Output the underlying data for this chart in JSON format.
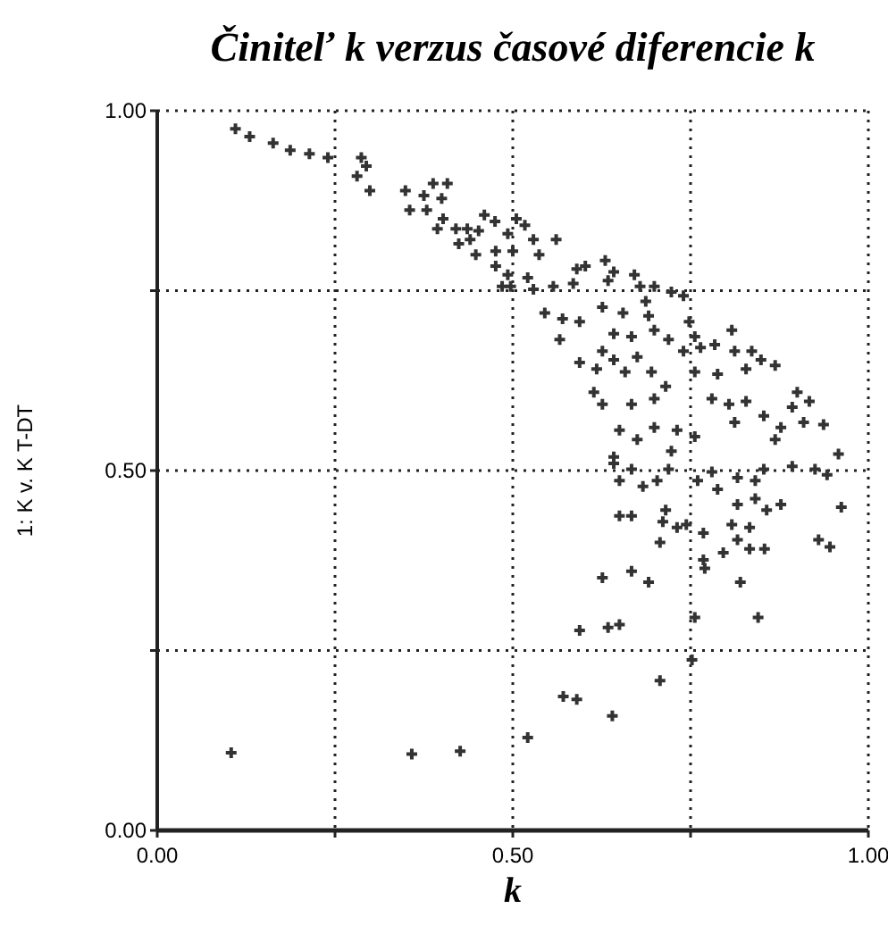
{
  "chart_data": {
    "type": "scatter",
    "title": "Činiteľ k verzus časové diferencie k",
    "xlabel": "k",
    "ylabel": "1: K v. K T-DT",
    "xlim": [
      0,
      1
    ],
    "ylim": [
      0,
      1
    ],
    "xticks": [
      {
        "value": 0,
        "label": "0.00"
      },
      {
        "value": 0.25,
        "label": null
      },
      {
        "value": 0.5,
        "label": "0.50"
      },
      {
        "value": 0.75,
        "label": null
      },
      {
        "value": 1,
        "label": "1.00"
      }
    ],
    "yticks": [
      {
        "value": 0,
        "label": "0.00"
      },
      {
        "value": 0.25,
        "label": null
      },
      {
        "value": 0.5,
        "label": "0.50"
      },
      {
        "value": 0.75,
        "label": null
      },
      {
        "value": 1,
        "label": "1.00"
      }
    ],
    "grid": true,
    "marker": "cross",
    "series": [
      {
        "color": "#333333",
        "x": [
          0.11,
          0.13,
          0.163,
          0.187,
          0.214,
          0.24,
          0.287,
          0.294,
          0.281,
          0.299,
          0.349,
          0.388,
          0.408,
          0.375,
          0.4,
          0.355,
          0.379,
          0.402,
          0.394,
          0.42,
          0.436,
          0.452,
          0.46,
          0.475,
          0.424,
          0.44,
          0.448,
          0.476,
          0.476,
          0.485,
          0.505,
          0.517,
          0.493,
          0.529,
          0.561,
          0.5,
          0.537,
          0.493,
          0.521,
          0.497,
          0.529,
          0.557,
          0.59,
          0.602,
          0.585,
          0.63,
          0.634,
          0.642,
          0.671,
          0.679,
          0.699,
          0.723,
          0.74,
          0.545,
          0.57,
          0.594,
          0.566,
          0.626,
          0.655,
          0.687,
          0.691,
          0.642,
          0.667,
          0.699,
          0.719,
          0.748,
          0.756,
          0.74,
          0.764,
          0.784,
          0.808,
          0.812,
          0.836,
          0.849,
          0.869,
          0.594,
          0.618,
          0.642,
          0.658,
          0.626,
          0.675,
          0.695,
          0.715,
          0.699,
          0.614,
          0.626,
          0.667,
          0.756,
          0.788,
          0.828,
          0.78,
          0.804,
          0.828,
          0.812,
          0.9,
          0.917,
          0.893,
          0.853,
          0.909,
          0.937,
          0.877,
          0.869,
          0.65,
          0.675,
          0.699,
          0.731,
          0.756,
          0.723,
          0.642,
          0.958,
          0.642,
          0.667,
          0.65,
          0.683,
          0.703,
          0.719,
          0.76,
          0.78,
          0.788,
          0.816,
          0.841,
          0.853,
          0.893,
          0.925,
          0.942,
          0.816,
          0.841,
          0.857,
          0.877,
          0.962,
          0.65,
          0.667,
          0.715,
          0.711,
          0.731,
          0.744,
          0.707,
          0.768,
          0.808,
          0.833,
          0.816,
          0.796,
          0.833,
          0.854,
          0.93,
          0.946,
          0.768,
          0.77,
          0.626,
          0.667,
          0.691,
          0.82,
          0.756,
          0.845,
          0.594,
          0.634,
          0.65,
          0.752,
          0.707,
          0.571,
          0.59,
          0.64,
          0.521,
          0.104,
          0.358,
          0.426
        ],
        "values": [
          0.975,
          0.964,
          0.955,
          0.945,
          0.94,
          0.935,
          0.935,
          0.923,
          0.909,
          0.889,
          0.889,
          0.899,
          0.899,
          0.882,
          0.878,
          0.862,
          0.862,
          0.85,
          0.836,
          0.836,
          0.836,
          0.833,
          0.855,
          0.846,
          0.815,
          0.821,
          0.8,
          0.805,
          0.784,
          0.756,
          0.85,
          0.841,
          0.829,
          0.821,
          0.821,
          0.805,
          0.8,
          0.772,
          0.768,
          0.756,
          0.752,
          0.756,
          0.78,
          0.784,
          0.76,
          0.792,
          0.764,
          0.776,
          0.772,
          0.756,
          0.756,
          0.748,
          0.743,
          0.719,
          0.711,
          0.707,
          0.682,
          0.727,
          0.719,
          0.735,
          0.715,
          0.69,
          0.686,
          0.695,
          0.682,
          0.707,
          0.686,
          0.666,
          0.671,
          0.675,
          0.695,
          0.666,
          0.666,
          0.654,
          0.646,
          0.65,
          0.641,
          0.654,
          0.637,
          0.666,
          0.658,
          0.637,
          0.617,
          0.6,
          0.609,
          0.592,
          0.592,
          0.637,
          0.634,
          0.641,
          0.6,
          0.592,
          0.596,
          0.567,
          0.609,
          0.596,
          0.588,
          0.576,
          0.567,
          0.564,
          0.56,
          0.543,
          0.556,
          0.543,
          0.56,
          0.556,
          0.547,
          0.527,
          0.519,
          0.523,
          0.51,
          0.502,
          0.486,
          0.478,
          0.486,
          0.502,
          0.486,
          0.498,
          0.474,
          0.49,
          0.486,
          0.502,
          0.506,
          0.502,
          0.494,
          0.453,
          0.461,
          0.445,
          0.453,
          0.449,
          0.437,
          0.437,
          0.445,
          0.429,
          0.421,
          0.425,
          0.4,
          0.413,
          0.425,
          0.421,
          0.404,
          0.386,
          0.391,
          0.391,
          0.404,
          0.394,
          0.376,
          0.364,
          0.351,
          0.36,
          0.345,
          0.345,
          0.296,
          0.296,
          0.278,
          0.282,
          0.286,
          0.237,
          0.208,
          0.186,
          0.182,
          0.159,
          0.129,
          0.108,
          0.106,
          0.11
        ]
      }
    ]
  }
}
